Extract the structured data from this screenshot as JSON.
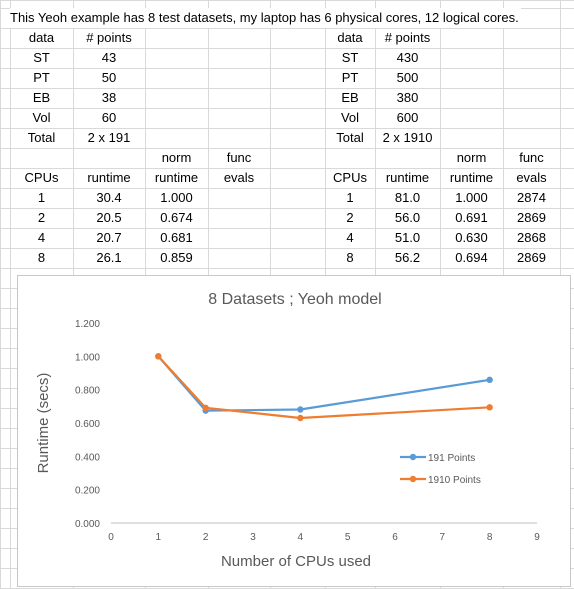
{
  "sheet": {
    "title": "This Yeoh example has 8 test datasets, my laptop has 6 physical cores, 12 logical cores.",
    "left_points": {
      "headers": [
        "data",
        "# points"
      ],
      "rows": [
        [
          "ST",
          "43"
        ],
        [
          "PT",
          "50"
        ],
        [
          "EB",
          "38"
        ],
        [
          "Vol",
          "60"
        ],
        [
          "Total",
          "2 x 191"
        ]
      ]
    },
    "right_points": {
      "headers": [
        "data",
        "# points"
      ],
      "rows": [
        [
          "ST",
          "430"
        ],
        [
          "PT",
          "500"
        ],
        [
          "EB",
          "380"
        ],
        [
          "Vol",
          "600"
        ],
        [
          "Total",
          "2 x 1910"
        ]
      ]
    },
    "left_runtime": {
      "header_top": [
        "",
        "",
        "norm",
        "func"
      ],
      "header_bottom": [
        "CPUs",
        "runtime",
        "runtime",
        "evals"
      ],
      "rows": [
        [
          "1",
          "30.4",
          "1.000",
          ""
        ],
        [
          "2",
          "20.5",
          "0.674",
          ""
        ],
        [
          "4",
          "20.7",
          "0.681",
          ""
        ],
        [
          "8",
          "26.1",
          "0.859",
          ""
        ]
      ]
    },
    "right_runtime": {
      "header_top": [
        "",
        "",
        "norm",
        "func"
      ],
      "header_bottom": [
        "CPUs",
        "runtime",
        "runtime",
        "evals"
      ],
      "rows": [
        [
          "1",
          "81.0",
          "1.000",
          "2874"
        ],
        [
          "2",
          "56.0",
          "0.691",
          "2869"
        ],
        [
          "4",
          "51.0",
          "0.630",
          "2868"
        ],
        [
          "8",
          "56.2",
          "0.694",
          "2869"
        ]
      ]
    }
  },
  "chart_data": {
    "type": "line",
    "title": "8 Datasets ; Yeoh model",
    "xlabel": "Number of CPUs used",
    "ylabel": "Runtime (secs)",
    "xlim": [
      0,
      9
    ],
    "ylim": [
      0,
      1.2
    ],
    "x_ticks": [
      "0",
      "1",
      "2",
      "3",
      "4",
      "5",
      "6",
      "7",
      "8",
      "9"
    ],
    "y_ticks": [
      "0.000",
      "0.200",
      "0.400",
      "0.600",
      "0.800",
      "1.000",
      "1.200"
    ],
    "grid": false,
    "legend_position": "right",
    "series": [
      {
        "name": "191 Points",
        "color": "#5b9bd5",
        "x": [
          1,
          2,
          4,
          8
        ],
        "y": [
          1.0,
          0.674,
          0.681,
          0.859
        ]
      },
      {
        "name": "1910 Points",
        "color": "#ed7d31",
        "x": [
          1,
          2,
          4,
          8
        ],
        "y": [
          1.0,
          0.691,
          0.63,
          0.694
        ]
      }
    ]
  }
}
